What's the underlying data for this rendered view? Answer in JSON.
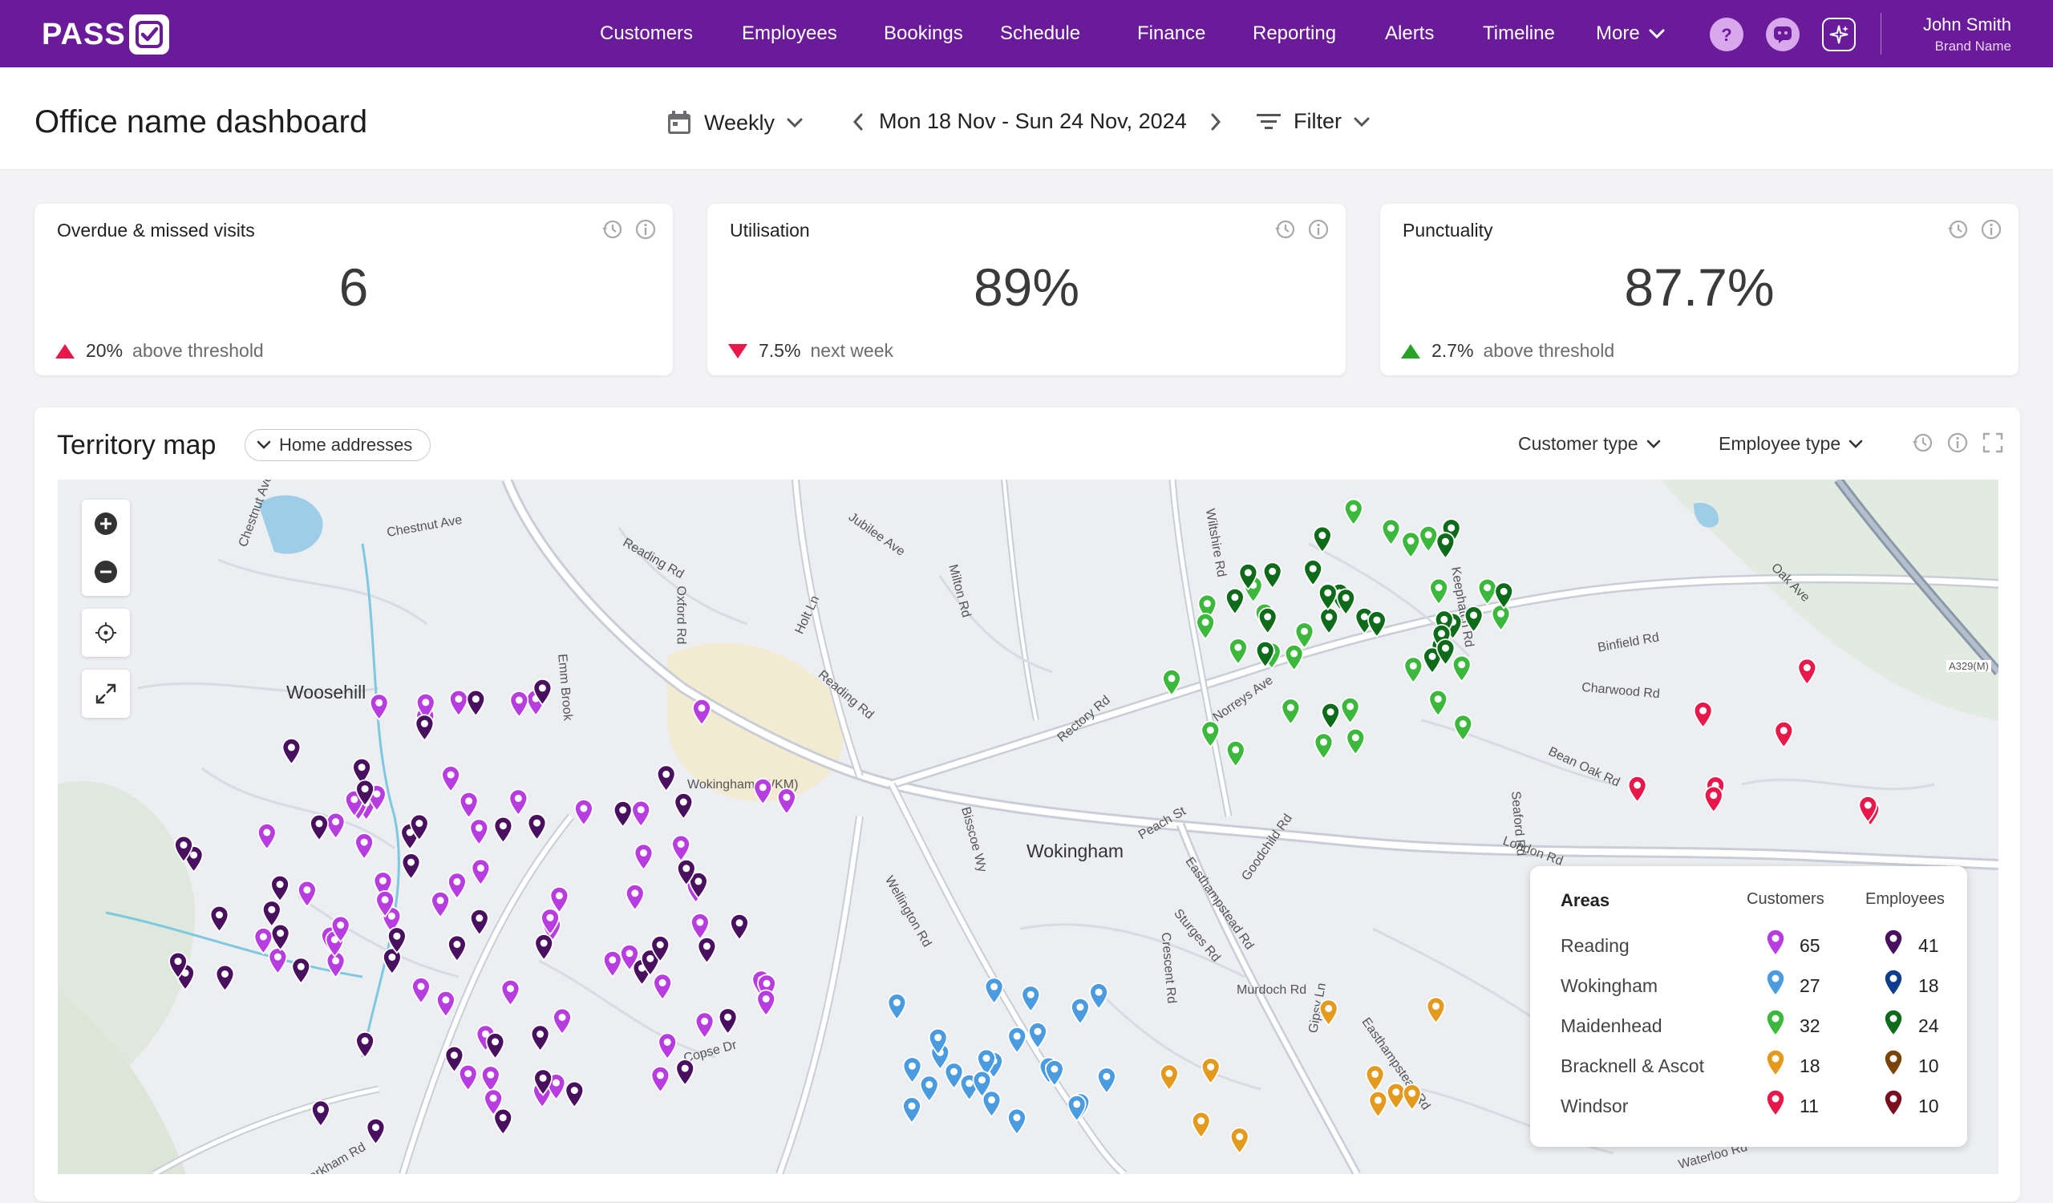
{
  "app": {
    "logo_text": "PASS"
  },
  "nav": {
    "items": [
      "Customers",
      "Employees",
      "Bookings",
      "Schedule",
      "Finance",
      "Reporting",
      "Alerts",
      "Timeline"
    ],
    "more_label": "More"
  },
  "user": {
    "name": "John Smith",
    "brand": "Brand Name"
  },
  "header": {
    "title": "Office name dashboard",
    "period": "Weekly",
    "date_range": "Mon 18 Nov - Sun 24 Nov, 2024",
    "filter": "Filter"
  },
  "kpis": [
    {
      "title": "Overdue & missed visits",
      "value": "6",
      "delta": "20%",
      "note": "above threshold",
      "trend": "up",
      "color": "#e8194a"
    },
    {
      "title": "Utilisation",
      "value": "89%",
      "delta": "7.5%",
      "note": "next week",
      "trend": "down",
      "color": "#e8194a"
    },
    {
      "title": "Punctuality",
      "value": "87.7%",
      "delta": "2.7%",
      "note": "above threshold",
      "trend": "up",
      "color": "#26a326"
    }
  ],
  "map": {
    "title": "Territory map",
    "address_chip": "Home addresses",
    "customer_type": "Customer type",
    "employee_type": "Employee type",
    "places": [
      "Woosehill",
      "Wokingham",
      "Wokingham (WKM)"
    ],
    "roads": [
      "Chestnut Ave",
      "Reading Rd",
      "Oxford Rd",
      "Jubilee Ave",
      "Milton Rd",
      "Holt Ln",
      "Reading Rd",
      "Wiltshire Rd",
      "Rectory Rd",
      "Norreys Ave",
      "Keephatch Rd",
      "Binfield Rd",
      "Charwood Rd",
      "Bean Oak Rd",
      "Oak Ave",
      "A329(M)",
      "London Rd",
      "Peach St",
      "Easthampstead Rd",
      "Goodchild Rd",
      "Murdoch Rd",
      "Sturges Rd",
      "Crescent Rd",
      "Gipsy Ln",
      "Easthampstead Rd",
      "Bisscoe Wy",
      "Wellington Rd",
      "Emm Brook",
      "Waterloo Rd",
      "Seaford Rd",
      "Chestnut Ave",
      "Copse Dr",
      "Barkham Rd"
    ],
    "legend": {
      "title": "Areas",
      "customers_label": "Customers",
      "employees_label": "Employees",
      "rows": [
        {
          "area": "Reading",
          "customers": "65",
          "employees": "41",
          "cust_color": "#b83de0",
          "emp_color": "#4a1060"
        },
        {
          "area": "Wokingham",
          "customers": "27",
          "employees": "18",
          "cust_color": "#4a9be0",
          "emp_color": "#0d3d8c"
        },
        {
          "area": "Maidenhead",
          "customers": "32",
          "employees": "24",
          "cust_color": "#3cb93c",
          "emp_color": "#0d6b1a"
        },
        {
          "area": "Bracknell & Ascot",
          "customers": "18",
          "employees": "10",
          "cust_color": "#e39a1e",
          "emp_color": "#7a4408"
        },
        {
          "area": "Windsor",
          "customers": "11",
          "employees": "10",
          "cust_color": "#e8194a",
          "emp_color": "#7a0d1f"
        }
      ]
    }
  }
}
